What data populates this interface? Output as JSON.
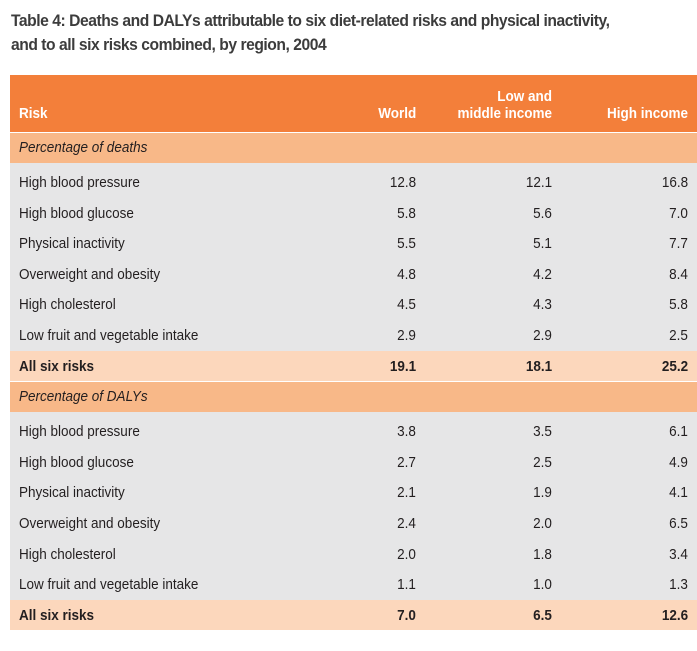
{
  "title": {
    "line1": "Table 4: Deaths and DALYs attributable to six diet-related risks and physical inactivity,",
    "line2": "and to all six risks combined, by region, 2004"
  },
  "header": {
    "risk": "Risk",
    "world": "World",
    "lmi_line1": "Low and",
    "lmi_line2": "middle income",
    "high": "High income"
  },
  "sections": [
    {
      "label": "Percentage of deaths",
      "rows": [
        {
          "risk": "High blood pressure",
          "world": "12.8",
          "lmi": "12.1",
          "high": "16.8"
        },
        {
          "risk": "High blood glucose",
          "world": "5.8",
          "lmi": "5.6",
          "high": "7.0"
        },
        {
          "risk": "Physical inactivity",
          "world": "5.5",
          "lmi": "5.1",
          "high": "7.7"
        },
        {
          "risk": "Overweight and obesity",
          "world": "4.8",
          "lmi": "4.2",
          "high": "8.4"
        },
        {
          "risk": "High cholesterol",
          "world": "4.5",
          "lmi": "4.3",
          "high": "5.8"
        },
        {
          "risk": "Low fruit and vegetable intake",
          "world": "2.9",
          "lmi": "2.9",
          "high": "2.5"
        }
      ],
      "total": {
        "risk": "All six risks",
        "world": "19.1",
        "lmi": "18.1",
        "high": "25.2"
      }
    },
    {
      "label": "Percentage of DALYs",
      "rows": [
        {
          "risk": "High blood pressure",
          "world": "3.8",
          "lmi": "3.5",
          "high": "6.1"
        },
        {
          "risk": "High blood glucose",
          "world": "2.7",
          "lmi": "2.5",
          "high": "4.9"
        },
        {
          "risk": "Physical inactivity",
          "world": "2.1",
          "lmi": "1.9",
          "high": "4.1"
        },
        {
          "risk": "Overweight and obesity",
          "world": "2.4",
          "lmi": "2.0",
          "high": "6.5"
        },
        {
          "risk": "High cholesterol",
          "world": "2.0",
          "lmi": "1.8",
          "high": "3.4"
        },
        {
          "risk": "Low fruit and vegetable intake",
          "world": "1.1",
          "lmi": "1.0",
          "high": "1.3"
        }
      ],
      "total": {
        "risk": "All six risks",
        "world": "7.0",
        "lmi": "6.5",
        "high": "12.6"
      }
    }
  ],
  "colors": {
    "header": "#f37f3a",
    "section": "#f8b888",
    "total": "#fcd7bc",
    "body": "#e6e6e7"
  }
}
